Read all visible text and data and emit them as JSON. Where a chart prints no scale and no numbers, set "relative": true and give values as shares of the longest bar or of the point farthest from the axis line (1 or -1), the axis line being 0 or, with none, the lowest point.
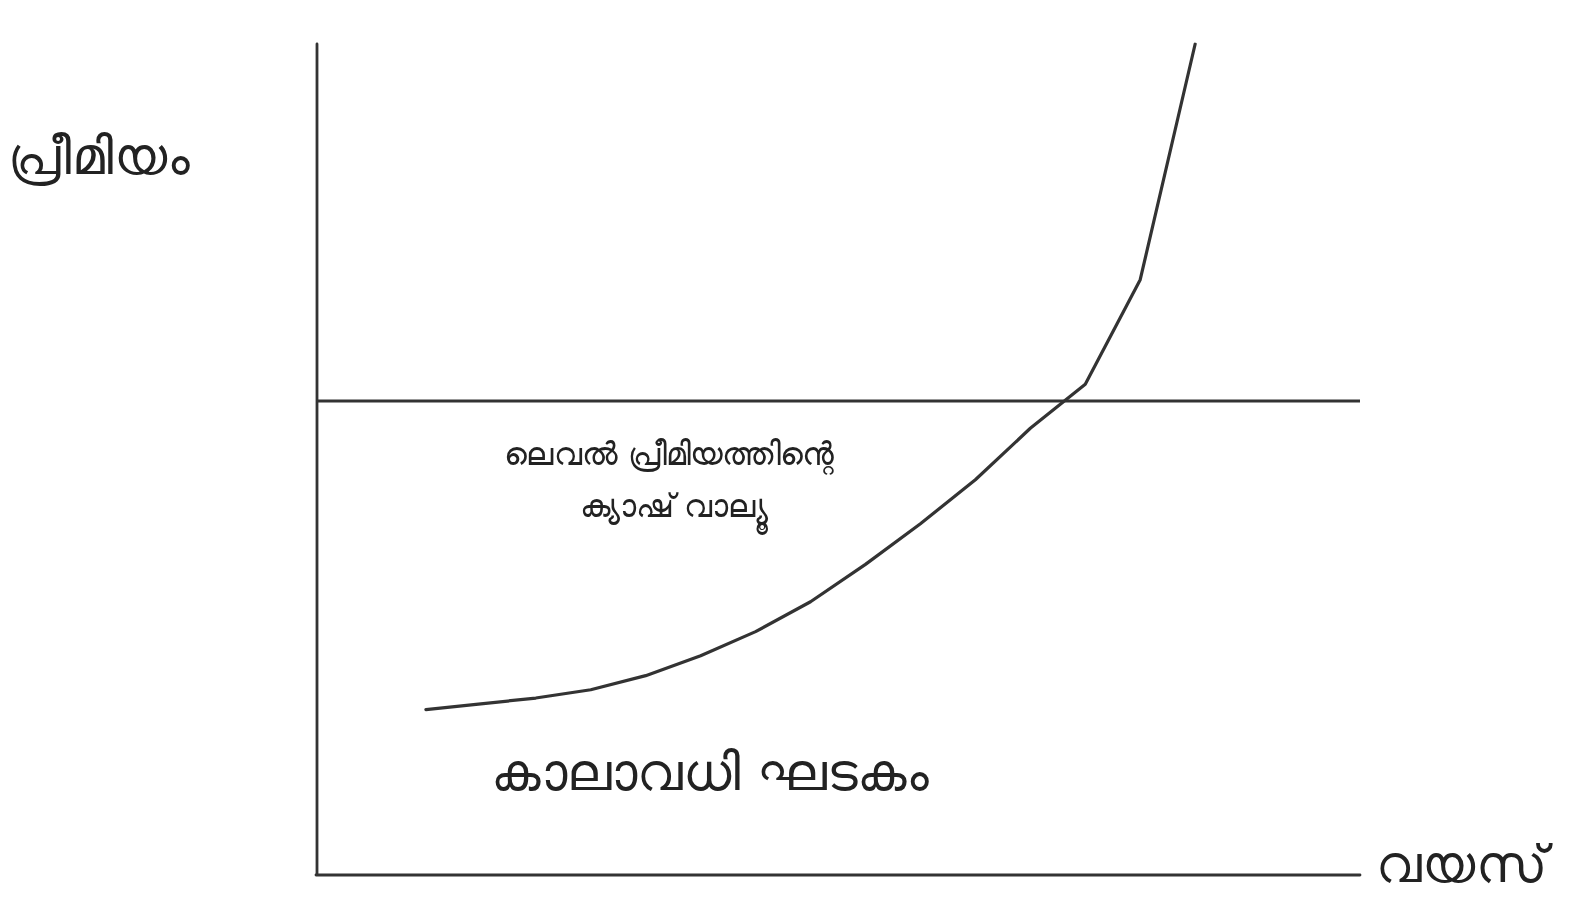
{
  "chart_data": {
    "type": "line",
    "relative": true,
    "ylabel": "പ്രീമിയം",
    "xlabel": "വയസ്",
    "categories": [
      null,
      null,
      null,
      null,
      null,
      null,
      null,
      null,
      null,
      null,
      null,
      null,
      null,
      null,
      null,
      null,
      null,
      null,
      null,
      null
    ],
    "series": [
      {
        "color": "#333333",
        "values": [
          null,
          null,
          0.198,
          0.205,
          0.212,
          0.222,
          0.239,
          0.263,
          0.292,
          0.328,
          0.373,
          0.422,
          0.475,
          0.537,
          0.59,
          0.716,
          1,
          null,
          null,
          null
        ]
      }
    ],
    "ref_lines": [
      {
        "axis": "y",
        "value": 0.571,
        "color": "#333333"
      }
    ],
    "annotations": [
      "ലെവൽ പ്രീമിയത്തിന്റെ ക്യാഷ് വാല്യൂ",
      "കാലാവധി ഘടകം"
    ],
    "grid": false,
    "marker": "none",
    "line_style": "solid"
  }
}
